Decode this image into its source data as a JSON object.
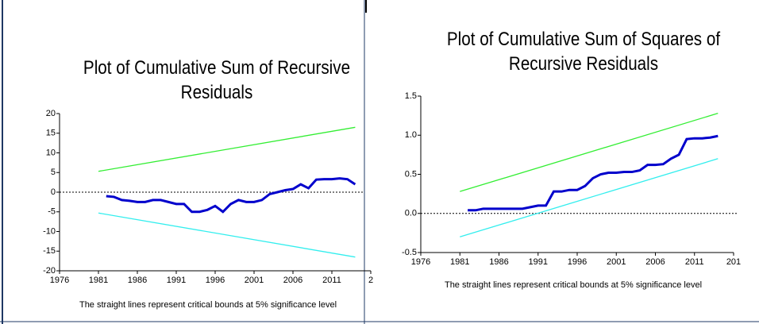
{
  "chart_data": [
    {
      "type": "line",
      "title": "Plot of Cumulative Sum of Recursive Residuals",
      "note": "The straight lines represent critical bounds at 5% significance level",
      "xlim": [
        1976,
        2016
      ],
      "xticks": [
        1976,
        1981,
        1986,
        1991,
        1996,
        2001,
        2006,
        2011,
        {
          "value": 2016,
          "label": "2"
        }
      ],
      "ylim": [
        -20,
        20
      ],
      "yticks": [
        -20,
        -15,
        -10,
        -5,
        0,
        5,
        10,
        15,
        20
      ],
      "reference_line": 0,
      "series": [
        {
          "color": "#0000cc",
          "x": [
            1982,
            1983,
            1984,
            1985,
            1986,
            1987,
            1988,
            1989,
            1990,
            1991,
            1992,
            1993,
            1994,
            1995,
            1996,
            1997,
            1998,
            1999,
            2000,
            2001,
            2002,
            2003,
            2004,
            2005,
            2006,
            2007,
            2008,
            2009,
            2010,
            2011,
            2012,
            2013,
            2014
          ],
          "values": [
            -1,
            -1.2,
            -2,
            -2.2,
            -2.5,
            -2.5,
            -2,
            -2,
            -2.5,
            -3,
            -3,
            -5,
            -5,
            -4.5,
            -3.5,
            -5,
            -3,
            -2,
            -2.5,
            -2.5,
            -2,
            -0.5,
            0,
            0.5,
            0.8,
            2,
            1,
            3.2,
            3.3,
            3.3,
            3.5,
            3.3,
            2
          ]
        },
        {
          "color": "#33ee33",
          "x": [
            1981,
            2014
          ],
          "values": [
            5.3,
            16.5
          ]
        },
        {
          "color": "#33eeee",
          "x": [
            1981,
            2014
          ],
          "values": [
            -5.3,
            -16.5
          ]
        }
      ]
    },
    {
      "type": "line",
      "title": "Plot of Cumulative Sum of Squares of Recursive Residuals",
      "note": "The straight lines represent critical bounds at 5% significance level",
      "xlim": [
        1976,
        2016
      ],
      "xticks": [
        1976,
        1981,
        1986,
        1991,
        1996,
        2001,
        2006,
        2011,
        {
          "value": 2016,
          "label": "201"
        }
      ],
      "ylim": [
        -0.5,
        1.5
      ],
      "yticks": [
        -0.5,
        {
          "value": 0,
          "label": "0.0"
        },
        0.5,
        {
          "value": 1,
          "label": "1.0"
        },
        1.5
      ],
      "reference_line": 0,
      "series": [
        {
          "color": "#0000cc",
          "x": [
            1982,
            1983,
            1984,
            1985,
            1986,
            1987,
            1988,
            1989,
            1990,
            1991,
            1992,
            1993,
            1994,
            1995,
            1996,
            1997,
            1998,
            1999,
            2000,
            2001,
            2002,
            2003,
            2004,
            2005,
            2006,
            2007,
            2008,
            2009,
            2010,
            2011,
            2012,
            2013,
            2014
          ],
          "values": [
            0.04,
            0.04,
            0.06,
            0.06,
            0.06,
            0.06,
            0.06,
            0.06,
            0.08,
            0.1,
            0.1,
            0.28,
            0.28,
            0.3,
            0.3,
            0.35,
            0.45,
            0.5,
            0.52,
            0.52,
            0.53,
            0.53,
            0.55,
            0.62,
            0.62,
            0.63,
            0.7,
            0.75,
            0.95,
            0.96,
            0.96,
            0.97,
            0.99
          ]
        },
        {
          "color": "#33ee33",
          "x": [
            1981,
            2014
          ],
          "values": [
            0.28,
            1.28
          ]
        },
        {
          "color": "#33eeee",
          "x": [
            1981,
            2014
          ],
          "values": [
            -0.3,
            0.7
          ]
        }
      ]
    }
  ]
}
